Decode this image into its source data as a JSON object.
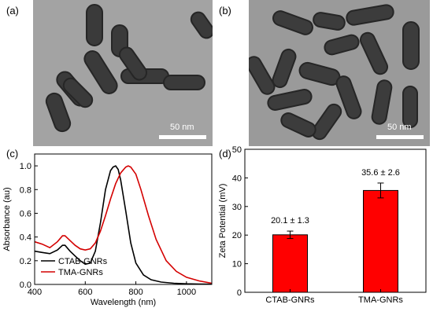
{
  "panels": {
    "a": "(a)",
    "b": "(b)",
    "c": "(c)",
    "d": "(d)"
  },
  "tem_a": {
    "scale_label": "50 nm"
  },
  "tem_b": {
    "scale_label": "50 nm"
  },
  "chart_data": [
    {
      "type": "line",
      "xlabel": "Wavelength (nm)",
      "ylabel": "Absorbance (au)",
      "xlim": [
        400,
        1100
      ],
      "ylim": [
        0,
        1.1
      ],
      "xticks": [
        400,
        600,
        800,
        1000
      ],
      "yticks": [
        0.0,
        0.2,
        0.4,
        0.6,
        0.8,
        1.0
      ],
      "ytick_labels": [
        "0.0",
        "0.2",
        "0.4",
        "0.6",
        "0.8",
        "1.0"
      ],
      "legend": "bottom-left",
      "series": [
        {
          "name": "CTAB-GNRs",
          "color": "#000000",
          "x": [
            400,
            430,
            460,
            490,
            510,
            520,
            540,
            560,
            580,
            600,
            620,
            640,
            660,
            680,
            700,
            710,
            720,
            730,
            740,
            760,
            780,
            800,
            830,
            860,
            900,
            950,
            1000,
            1050,
            1100
          ],
          "y": [
            0.28,
            0.27,
            0.26,
            0.29,
            0.33,
            0.33,
            0.28,
            0.24,
            0.2,
            0.17,
            0.18,
            0.28,
            0.52,
            0.8,
            0.96,
            0.99,
            1.0,
            0.97,
            0.88,
            0.62,
            0.35,
            0.18,
            0.08,
            0.04,
            0.02,
            0.01,
            0.005,
            0.003,
            0.002
          ]
        },
        {
          "name": "TMA-GNRs",
          "color": "#d40000",
          "x": [
            400,
            430,
            460,
            490,
            510,
            520,
            540,
            560,
            580,
            600,
            620,
            640,
            660,
            680,
            700,
            720,
            740,
            760,
            770,
            780,
            800,
            820,
            850,
            880,
            920,
            960,
            1000,
            1050,
            1100
          ],
          "y": [
            0.36,
            0.34,
            0.31,
            0.36,
            0.41,
            0.41,
            0.37,
            0.33,
            0.3,
            0.29,
            0.3,
            0.35,
            0.45,
            0.58,
            0.72,
            0.85,
            0.94,
            0.99,
            1.0,
            0.99,
            0.93,
            0.8,
            0.58,
            0.38,
            0.2,
            0.11,
            0.06,
            0.03,
            0.01
          ]
        }
      ]
    },
    {
      "type": "bar",
      "ylabel": "Zeta Potential (mV)",
      "ylim": [
        0,
        50
      ],
      "yticks": [
        0,
        10,
        20,
        30,
        40,
        50
      ],
      "categories": [
        "CTAB-GNRs",
        "TMA-GNRs"
      ],
      "values": [
        20.1,
        35.6
      ],
      "errors": [
        1.3,
        2.6
      ],
      "data_labels": [
        "20.1 ± 1.3",
        "35.6 ± 2.6"
      ],
      "bar_color": "#ff0000"
    }
  ]
}
